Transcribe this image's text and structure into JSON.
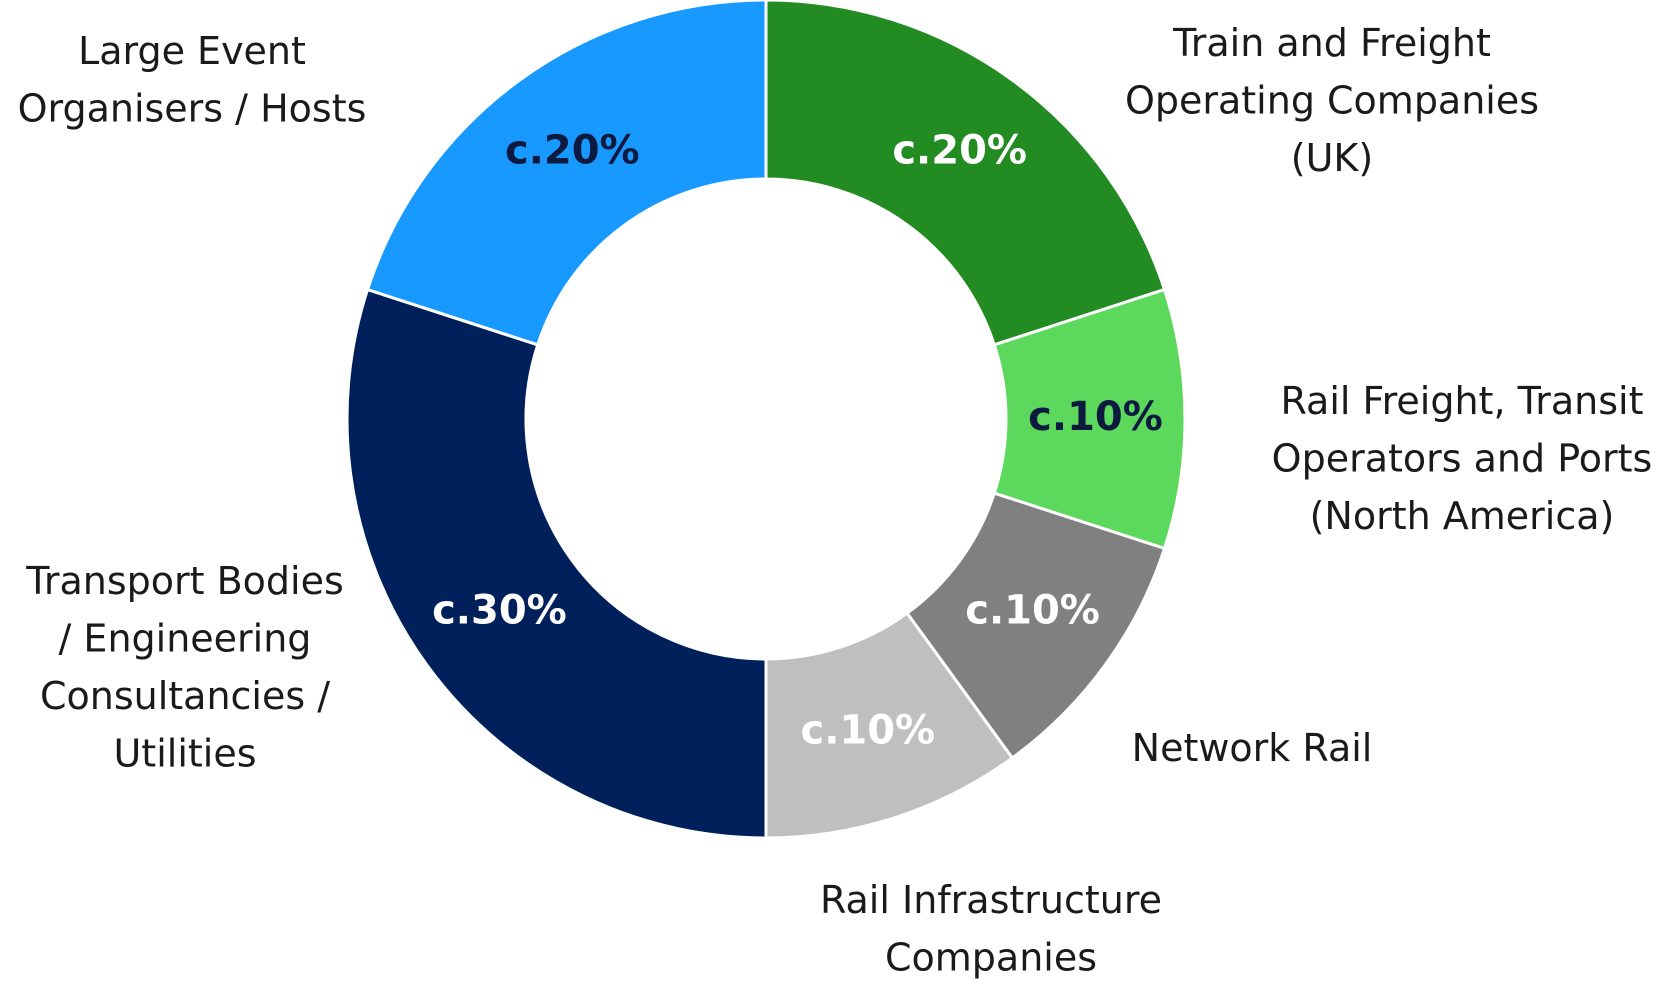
{
  "chart_data": {
    "type": "donut",
    "categories": [
      "Train and Freight Operating Companies (UK)",
      "Rail Freight, Transit Operators and Ports (North America)",
      "Network Rail",
      "Rail Infrastructure Companies",
      "Transport Bodies / Engineering Consultancies / Utilities",
      "Large Event Organisers / Hosts"
    ],
    "values": [
      20,
      10,
      10,
      10,
      30,
      20
    ],
    "value_labels": [
      "c.20%",
      "c.10%",
      "c.10%",
      "c.10%",
      "c.30%",
      "c.20%"
    ],
    "colors": [
      "#228b22",
      "#5cd95c",
      "#808080",
      "#bfbfbf",
      "#00205b",
      "#1799ff"
    ],
    "label_colors": [
      "#ffffff",
      "#0d1a40",
      "#ffffff",
      "#ffffff",
      "#ffffff",
      "#0d1a40"
    ]
  }
}
